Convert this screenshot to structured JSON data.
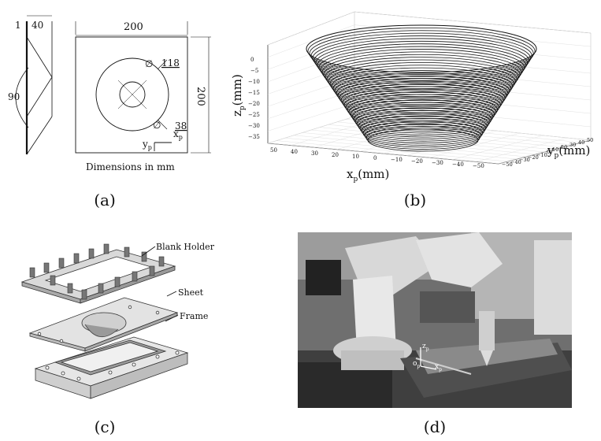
{
  "panel_a": {
    "dim_thickness": "1",
    "dim_depth": "40",
    "dim_angle": "90",
    "dim_width": "200",
    "dim_height": "200",
    "dim_diameter": "118",
    "dim_small": "38",
    "axis_x": "x",
    "axis_x_sub": "p",
    "axis_y": "y",
    "axis_y_sub": "p",
    "phi": "∅",
    "note": "Dimensions in mm"
  },
  "panel_b": {
    "z_label": "z",
    "z_sub": "p",
    "z_unit": "(mm)",
    "x_label": "x",
    "x_sub": "p",
    "x_unit": "(mm)",
    "y_label": "y",
    "y_sub": "p",
    "y_unit": "(mm)",
    "z_ticks": [
      "0",
      "−5",
      "−10",
      "−15",
      "−20",
      "−25",
      "−30",
      "−35"
    ],
    "x_ticks": [
      "50",
      "40",
      "30",
      "20",
      "10",
      "0",
      "−10",
      "−20",
      "−30",
      "−40",
      "−50"
    ],
    "y_ticks": [
      "−50",
      "−40",
      "−30",
      "−20",
      "−10",
      "0",
      "10",
      "20",
      "30",
      "40",
      "50"
    ]
  },
  "panel_c": {
    "label_holder": "Blank Holder",
    "label_sheet": "Sheet",
    "label_frame": "Frame"
  },
  "panel_d": {
    "z_label": "z",
    "z_sub": "p",
    "x_label": "x",
    "x_sub": "p",
    "o_label": "o",
    "o_sub": "p"
  },
  "captions": {
    "a": "(a)",
    "b": "(b)",
    "c": "(c)",
    "d": "(d)"
  }
}
